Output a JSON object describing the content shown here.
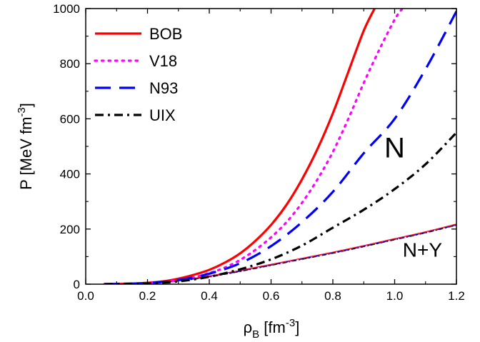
{
  "chart_data": {
    "type": "line",
    "xlabel": {
      "main": "ρ",
      "sub": "B",
      "unit_open": " [fm",
      "unit_sup": "-3",
      "unit_close": "]"
    },
    "ylabel": {
      "main": "P [MeV fm",
      "sup": "-3",
      "close": "]"
    },
    "xlim": [
      0.0,
      1.2
    ],
    "ylim": [
      0,
      1000
    ],
    "xticks": [
      0.0,
      0.2,
      0.4,
      0.6,
      0.8,
      1.0,
      1.2
    ],
    "xtick_labels": [
      "0.0",
      "0.2",
      "0.4",
      "0.6",
      "0.8",
      "1.0",
      "1.2"
    ],
    "yticks": [
      0,
      200,
      400,
      600,
      800,
      1000
    ],
    "ytick_labels": [
      "0",
      "200",
      "400",
      "600",
      "800",
      "1000"
    ],
    "legend_position": "top-left",
    "annotations": [
      {
        "text": "N",
        "x": 1.0,
        "y": 460
      },
      {
        "text": "N+Y",
        "x": 1.09,
        "y": 100
      }
    ],
    "series": [
      {
        "name": "BOB",
        "color": "#ff0000",
        "style": "solid",
        "group": "N",
        "x": [
          0.06,
          0.1,
          0.15,
          0.2,
          0.25,
          0.3,
          0.35,
          0.4,
          0.45,
          0.5,
          0.55,
          0.6,
          0.65,
          0.7,
          0.75,
          0.8,
          0.85,
          0.9,
          0.935
        ],
        "y": [
          0,
          1,
          2,
          5,
          10,
          20,
          34,
          52,
          78,
          112,
          158,
          215,
          288,
          380,
          490,
          620,
          770,
          920,
          1000
        ]
      },
      {
        "name": "V18",
        "color": "#ff00ff",
        "style": "dotted",
        "group": "N",
        "x": [
          0.06,
          0.1,
          0.15,
          0.2,
          0.25,
          0.3,
          0.35,
          0.4,
          0.45,
          0.5,
          0.55,
          0.6,
          0.65,
          0.7,
          0.75,
          0.8,
          0.85,
          0.9,
          0.95,
          1.0,
          1.025
        ],
        "y": [
          0,
          1,
          2,
          4,
          8,
          15,
          25,
          40,
          60,
          88,
          125,
          170,
          225,
          295,
          380,
          480,
          600,
          730,
          850,
          960,
          1000
        ]
      },
      {
        "name": "N93",
        "color": "#0000ff",
        "style": "dashed",
        "group": "N",
        "x": [
          0.06,
          0.1,
          0.2,
          0.3,
          0.4,
          0.5,
          0.6,
          0.7,
          0.8,
          0.9,
          1.0,
          1.1,
          1.2
        ],
        "y": [
          0,
          1,
          4,
          15,
          38,
          76,
          138,
          225,
          335,
          475,
          600,
          780,
          990
        ]
      },
      {
        "name": "UIX",
        "color": "#000000",
        "style": "dashdot",
        "group": "N",
        "x": [
          0.06,
          0.1,
          0.2,
          0.3,
          0.4,
          0.5,
          0.6,
          0.7,
          0.8,
          0.9,
          1.0,
          1.1,
          1.2
        ],
        "y": [
          0,
          1,
          3,
          10,
          27,
          54,
          90,
          140,
          205,
          270,
          345,
          435,
          550
        ]
      },
      {
        "color": "#ff0000",
        "style": "solid-thin",
        "group": "N+Y",
        "x": [
          0.06,
          0.1,
          0.2,
          0.3,
          0.4,
          0.5,
          0.6,
          0.7,
          0.8,
          0.9,
          1.0,
          1.1,
          1.2
        ],
        "y": [
          0,
          1,
          4,
          14,
          30,
          50,
          72,
          94,
          116,
          140,
          165,
          190,
          218
        ]
      },
      {
        "color": "#ff00ff",
        "style": "dotted-thin",
        "group": "N+Y",
        "x": [
          0.06,
          0.1,
          0.2,
          0.3,
          0.4,
          0.5,
          0.6,
          0.7,
          0.8,
          0.9,
          1.0,
          1.1,
          1.2
        ],
        "y": [
          0,
          1,
          4,
          13,
          28,
          48,
          70,
          92,
          114,
          138,
          163,
          188,
          216
        ]
      },
      {
        "color": "#0000ff",
        "style": "dashed-thin",
        "group": "N+Y",
        "x": [
          0.06,
          0.1,
          0.2,
          0.3,
          0.4,
          0.5,
          0.6,
          0.7,
          0.8,
          0.9,
          1.0,
          1.1,
          1.2
        ],
        "y": [
          0,
          1,
          3,
          12,
          27,
          47,
          69,
          91,
          113,
          137,
          162,
          187,
          215
        ]
      },
      {
        "color": "#000000",
        "style": "dashdot-thin",
        "group": "N+Y",
        "x": [
          0.06,
          0.1,
          0.2,
          0.3,
          0.4,
          0.5,
          0.6,
          0.7,
          0.8,
          0.9,
          1.0,
          1.1,
          1.2
        ],
        "y": [
          0,
          1,
          3,
          11,
          26,
          46,
          68,
          90,
          112,
          136,
          161,
          186,
          214
        ]
      }
    ],
    "legend": [
      "BOB",
      "V18",
      "N93",
      "UIX"
    ]
  }
}
